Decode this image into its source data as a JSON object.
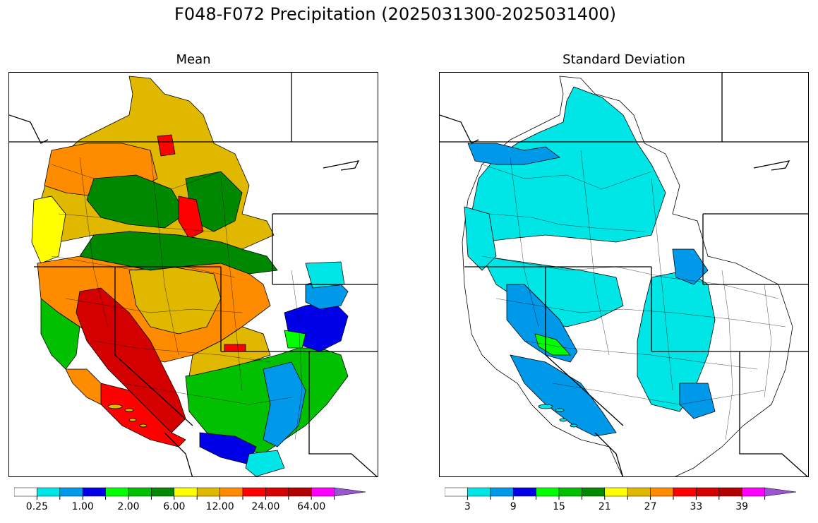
{
  "title": "F048-F072 Precipitation (2025031300-2025031400)",
  "panels": [
    {
      "title": "Mean",
      "colorbar": {
        "colors": [
          "#ffffff",
          "#00e5e5",
          "#0098e8",
          "#0000e8",
          "#00ff00",
          "#00c000",
          "#008800",
          "#ffff00",
          "#e0b800",
          "#ff8c00",
          "#ff0000",
          "#d40000",
          "#b00000",
          "#ff00ff",
          "#9a55d0"
        ],
        "tick_labels": [
          "0.25",
          "1.00",
          "2.00",
          "6.00",
          "12.00",
          "24.00",
          "64.00"
        ]
      }
    },
    {
      "title": "Standard Deviation",
      "colorbar": {
        "colors": [
          "#ffffff",
          "#00e5e5",
          "#0098e8",
          "#0000e8",
          "#00ff00",
          "#00c000",
          "#008800",
          "#ffff00",
          "#e0b800",
          "#ff8c00",
          "#ff0000",
          "#d40000",
          "#b00000",
          "#ff00ff",
          "#9a55d0"
        ],
        "tick_labels": [
          "3",
          "9",
          "15",
          "21",
          "27",
          "33",
          "39"
        ]
      }
    }
  ]
}
